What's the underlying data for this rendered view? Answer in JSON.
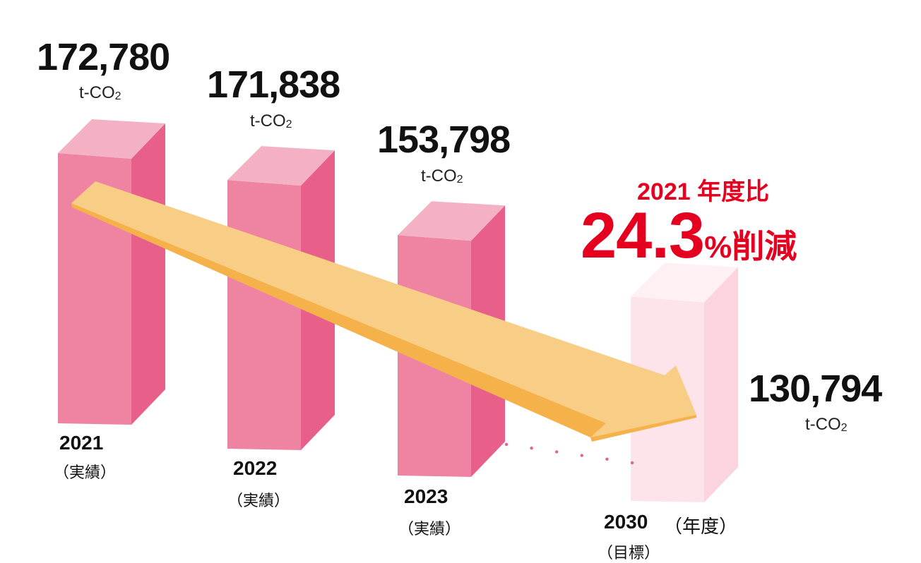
{
  "chart_data": {
    "type": "bar",
    "categories": [
      "2021",
      "2022",
      "2023",
      "2030"
    ],
    "category_notes": [
      "（実績）",
      "（実績）",
      "（実績）",
      "（目標）"
    ],
    "values": [
      172780,
      171838,
      153798,
      130794
    ],
    "value_labels": [
      "172,780",
      "171,838",
      "153,798",
      "130,794"
    ],
    "unit_prefix": "t-CO",
    "unit_sub": "2",
    "x_axis_suffix": "（年度）",
    "ylim": [
      0,
      180000
    ],
    "colors": {
      "actual_front": "#ef83a2",
      "actual_side": "#e8608a",
      "actual_top": "#f5b1c4",
      "target_front": "#fde3ea",
      "target_side": "#fbd4df",
      "target_top": "#fff0f4",
      "arrow": "#f8cd85",
      "arrow_edge": "#f6b24a",
      "dots": "#e8608a",
      "highlight": "#e6001f"
    },
    "annotation": {
      "line1": "2021 年度比",
      "big": "24.3",
      "pct": "%",
      "tail": "削減"
    }
  }
}
